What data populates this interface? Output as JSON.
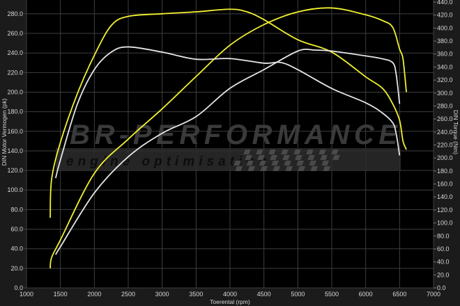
{
  "chart_data": {
    "type": "line",
    "title": "",
    "xlabel": "Toerental (rpm)",
    "ylabel": "DIN Motor Vermogen (pk)",
    "y2label": "DIN Torque (Nm)",
    "xlim": [
      1000,
      7000
    ],
    "ylim": [
      0,
      292
    ],
    "y2lim": [
      0,
      440
    ],
    "xticks": [
      1000,
      1500,
      2000,
      2500,
      3000,
      3500,
      4000,
      4500,
      5000,
      5500,
      6000,
      6500,
      7000
    ],
    "yticks": [
      0,
      20,
      40,
      60,
      80,
      100,
      120,
      140,
      160,
      180,
      200,
      220,
      240,
      260,
      280
    ],
    "y2ticks": [
      0,
      20,
      40,
      60,
      80,
      100,
      120,
      140,
      160,
      180,
      200,
      220,
      240,
      260,
      280,
      300,
      320,
      340,
      360,
      380,
      400,
      420,
      440
    ],
    "grid": true,
    "watermark": {
      "brand": "BR-Performance",
      "tagline": "engine optimisation"
    },
    "colors": {
      "tuned": "#f2f230",
      "stock": "#e6e6e6",
      "plot_bg": "#000000",
      "grid": "#3e3e3e",
      "frame_bg": "#1b1b1b"
    },
    "series": [
      {
        "axis": "left",
        "color": "tuned",
        "x": [
          1350,
          1370,
          1500,
          2000,
          2500,
          3000,
          3500,
          4000,
          4500,
          5000,
          5500,
          6000,
          6250,
          6400,
          6500,
          6550,
          6600
        ],
        "y": [
          20,
          31,
          49,
          117,
          152,
          183,
          216,
          248,
          269,
          282,
          286,
          279,
          273,
          266,
          244,
          234,
          200
        ]
      },
      {
        "axis": "right",
        "color": "tuned",
        "x": [
          1350,
          1370,
          1500,
          1750,
          2000,
          2250,
          2500,
          3000,
          3500,
          4000,
          4250,
          4500,
          5000,
          5500,
          6000,
          6250,
          6400,
          6500,
          6550,
          6600
        ],
        "y": [
          108,
          167,
          224,
          299,
          358,
          404,
          418,
          422,
          425,
          429,
          425,
          413,
          382,
          363,
          325,
          307,
          283,
          258,
          226,
          213
        ]
      },
      {
        "axis": "left",
        "color": "stock",
        "x": [
          1430,
          1500,
          2000,
          2500,
          3000,
          3500,
          4000,
          4500,
          5000,
          5250,
          5500,
          6000,
          6250,
          6400,
          6450,
          6500
        ],
        "y": [
          34,
          42,
          97,
          134,
          158,
          175,
          204,
          223,
          242,
          243,
          242,
          237,
          234,
          230,
          218,
          188
        ]
      },
      {
        "axis": "right",
        "color": "stock",
        "x": [
          1430,
          1500,
          1750,
          2000,
          2250,
          2500,
          3000,
          3500,
          4000,
          4500,
          4750,
          5000,
          5500,
          6000,
          6250,
          6400,
          6450,
          6500
        ],
        "y": [
          169,
          197,
          283,
          336,
          363,
          371,
          363,
          352,
          353,
          346,
          347,
          336,
          307,
          285,
          269,
          254,
          237,
          204
        ]
      }
    ]
  }
}
